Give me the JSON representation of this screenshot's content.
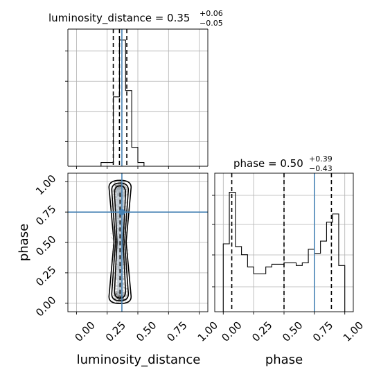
{
  "chart_data": {
    "type": "corner",
    "parameters": [
      "luminosity_distance",
      "phase"
    ],
    "truths": {
      "luminosity_distance": 0.37,
      "phase": 0.75
    },
    "ticks": [
      0.0,
      0.25,
      0.5,
      0.75,
      1.0
    ],
    "tick_labels": [
      "0.00",
      "0.25",
      "0.50",
      "0.75",
      "1.00"
    ],
    "panels": {
      "luminosity_distance_hist": {
        "title_main": "luminosity_distance = 0.35",
        "title_sup": "+0.06",
        "title_sub": "−0.05",
        "xlim": [
          -0.07,
          1.07
        ],
        "bins": [
          0.1,
          0.15,
          0.2,
          0.25,
          0.3,
          0.35,
          0.4,
          0.45,
          0.5,
          0.55
        ],
        "counts": [
          0.03,
          0.03,
          0.55,
          1.0,
          0.6,
          0.15,
          0.03
        ],
        "bin_edges": [
          0.2,
          0.25,
          0.3,
          0.35,
          0.4,
          0.45,
          0.5,
          0.55
        ],
        "quantiles": [
          0.3,
          0.35,
          0.41
        ]
      },
      "phase_hist": {
        "title_main": "phase = 0.50",
        "title_sup": "+0.39",
        "title_sub": "−0.43",
        "xlim": [
          -0.07,
          1.07
        ],
        "bin_edges": [
          0.0,
          0.05,
          0.1,
          0.15,
          0.2,
          0.25,
          0.3,
          0.35,
          0.4,
          0.45,
          0.5,
          0.55,
          0.6,
          0.65,
          0.7,
          0.75,
          0.8,
          0.85,
          0.9,
          0.95,
          1.0
        ],
        "counts": [
          0.5,
          0.88,
          0.48,
          0.42,
          0.33,
          0.28,
          0.28,
          0.33,
          0.35,
          0.35,
          0.36,
          0.36,
          0.34,
          0.36,
          0.46,
          0.43,
          0.52,
          0.66,
          0.72,
          0.34
        ],
        "quantiles": [
          0.07,
          0.5,
          0.89
        ]
      },
      "joint": {
        "xlim": [
          -0.07,
          1.07
        ],
        "ylim": [
          -0.07,
          1.07
        ],
        "x_center": 0.355,
        "x_spread": 0.045,
        "n_points": 1400
      }
    },
    "xlabel_left": "luminosity_distance",
    "xlabel_right": "phase",
    "ylabel": "phase",
    "colors": {
      "truth": "#4682b4",
      "line": "#000000",
      "grid": "#b0b0b0"
    }
  }
}
